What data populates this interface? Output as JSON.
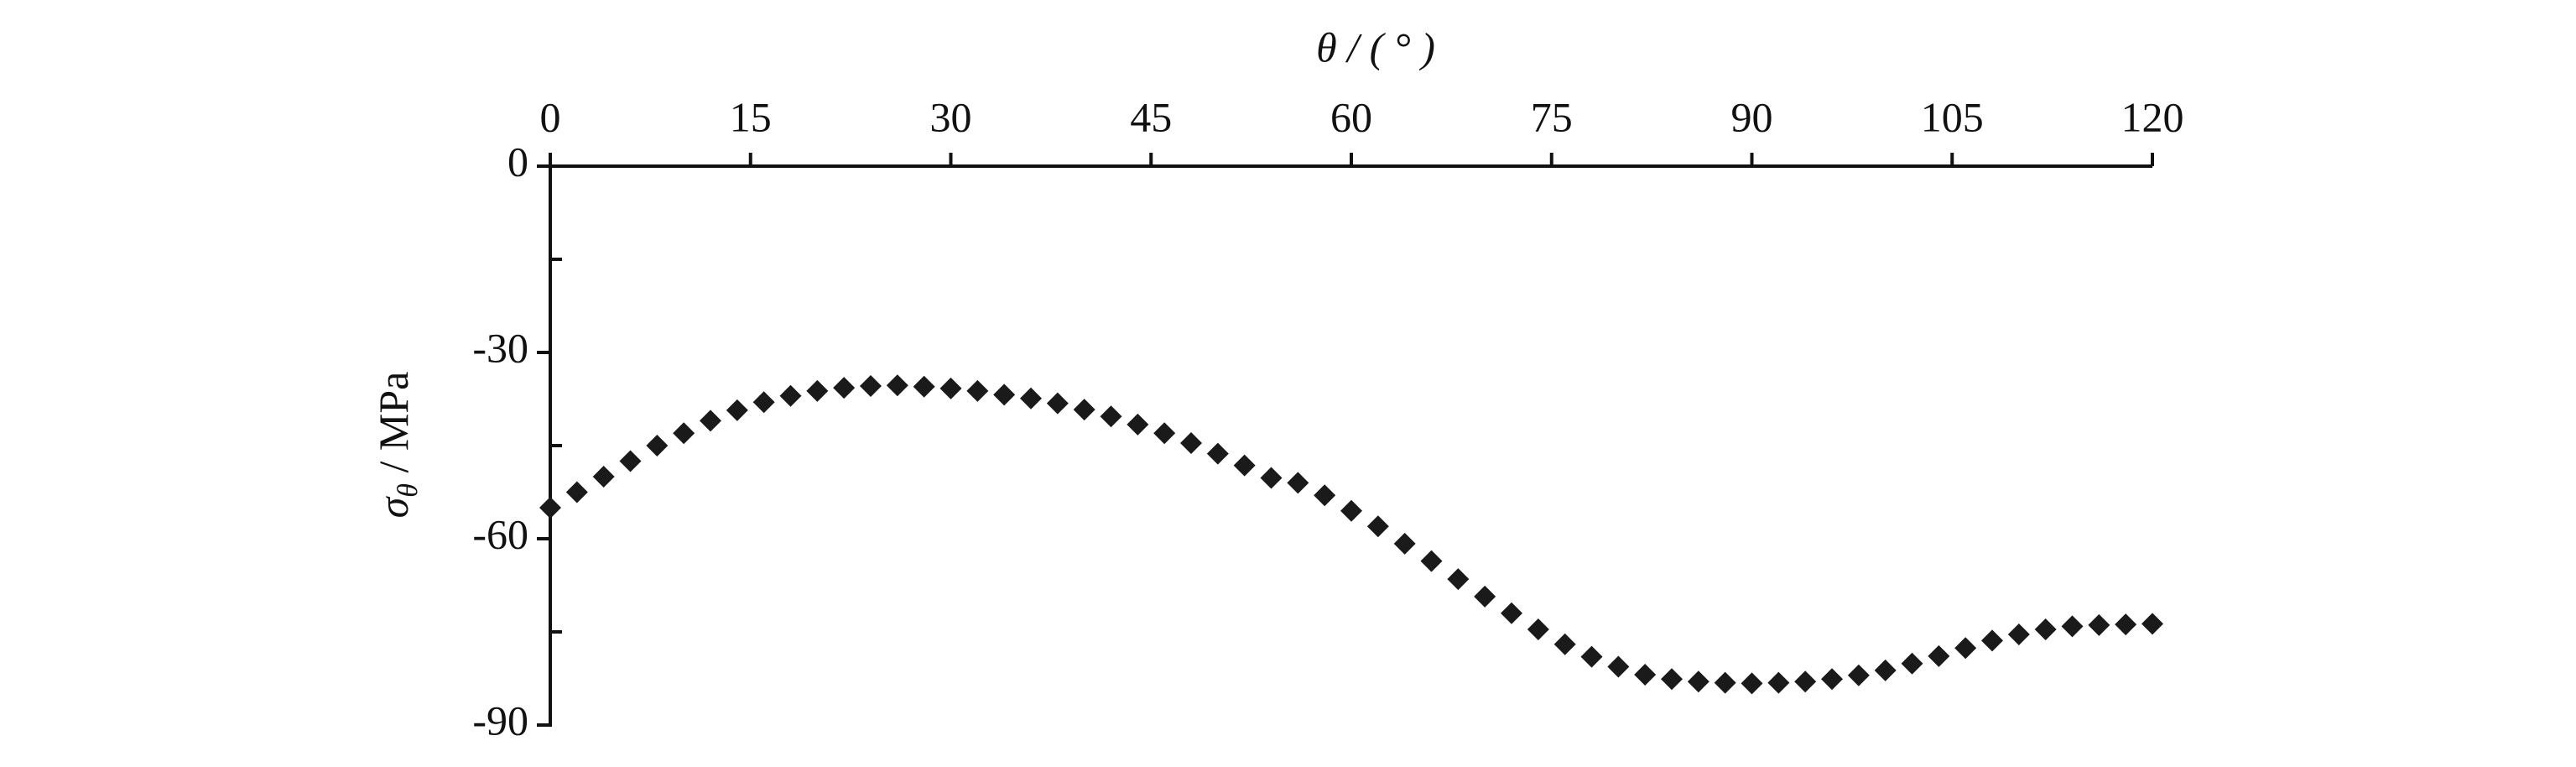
{
  "chart_data": {
    "type": "scatter",
    "xlabel": "θ / ( ° )",
    "ylabel": "σ",
    "ylabel_sub": "θ",
    "ylabel_unit": " / MPa",
    "x": [
      0,
      2,
      4,
      6,
      8,
      10,
      12,
      14,
      16,
      18,
      20,
      22,
      24,
      26,
      28,
      30,
      32,
      34,
      36,
      38,
      40,
      42,
      44,
      46,
      48,
      50,
      52,
      54,
      56,
      58,
      60,
      62,
      64,
      66,
      68,
      70,
      72,
      74,
      76,
      78,
      80,
      82,
      84,
      86,
      88,
      90,
      92,
      94,
      96,
      98,
      100,
      102,
      104,
      106,
      108,
      110,
      112,
      114,
      116,
      118,
      120
    ],
    "values": [
      -55,
      -52.5,
      -50,
      -47.5,
      -45,
      -43,
      -41,
      -39.3,
      -38,
      -37,
      -36.2,
      -35.7,
      -35.4,
      -35.3,
      -35.5,
      -35.8,
      -36.2,
      -36.8,
      -37.4,
      -38.2,
      -39.2,
      -40.3,
      -41.6,
      -43,
      -44.6,
      -46.3,
      -48.2,
      -50.2,
      -51,
      -53,
      -55.5,
      -58,
      -60.8,
      -63.6,
      -66.5,
      -69.3,
      -72,
      -74.6,
      -77,
      -79,
      -80.6,
      -81.9,
      -82.6,
      -83,
      -83.2,
      -83.3,
      -83.2,
      -83,
      -82.6,
      -82,
      -81.2,
      -80.1,
      -78.9,
      -77.6,
      -76.4,
      -75.4,
      -74.6,
      -74.1,
      -73.9,
      -73.8,
      -73.7
    ],
    "color": "#1a1a1a",
    "xlim": [
      0,
      120
    ],
    "xticks": [
      0,
      15,
      30,
      45,
      60,
      75,
      90,
      105,
      120
    ],
    "ylim": [
      0,
      -90
    ],
    "yticks": [
      0,
      -30,
      -60,
      -90
    ],
    "yminorticks": [
      -15,
      -45,
      -75
    ]
  }
}
